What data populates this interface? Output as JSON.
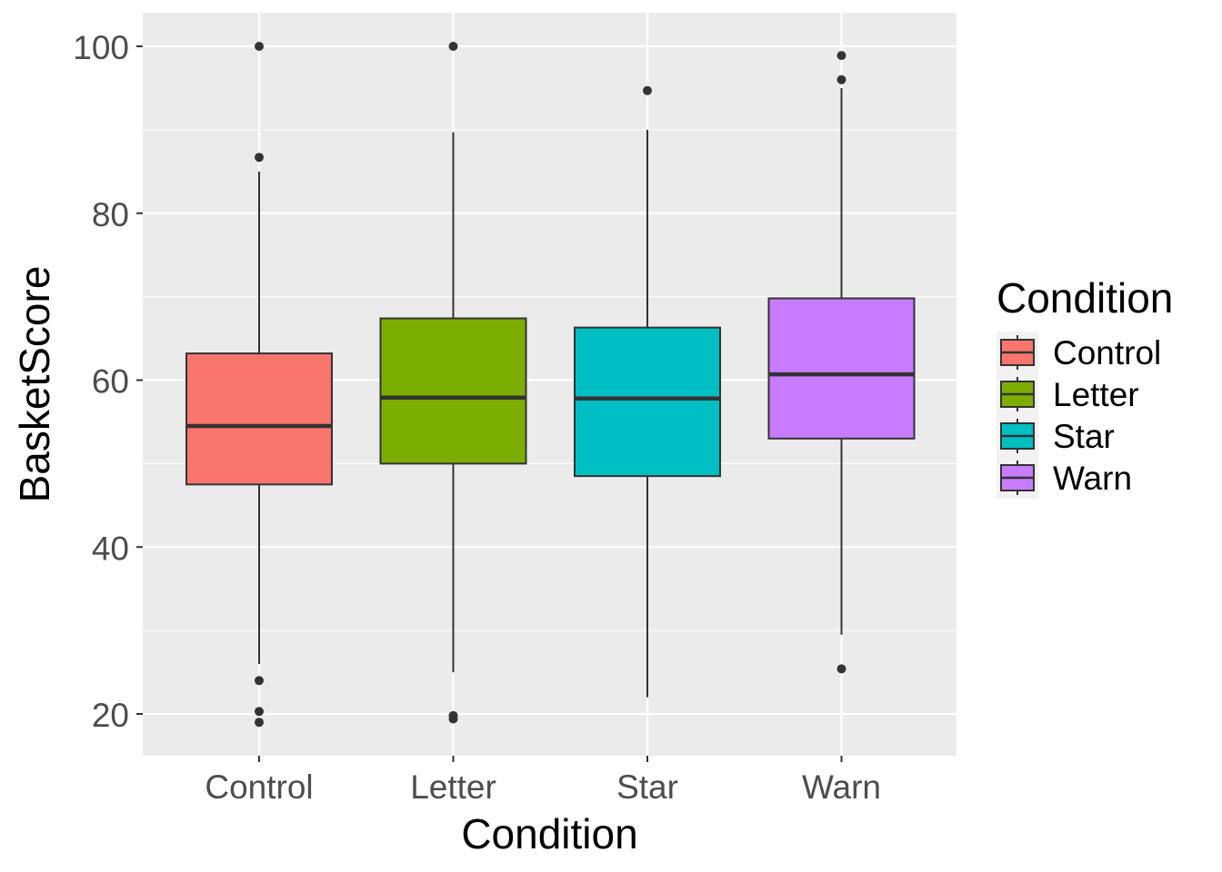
{
  "chart_data": {
    "type": "box",
    "xlabel": "Condition",
    "ylabel": "BasketScore",
    "ylim": [
      15,
      105
    ],
    "yticks": [
      20,
      40,
      60,
      80,
      100
    ],
    "categories": [
      "Control",
      "Letter",
      "Star",
      "Warn"
    ],
    "series": [
      {
        "name": "Control",
        "q1": 47.5,
        "median": 54.5,
        "q3": 63.2,
        "whisker_low": 26.0,
        "whisker_high": 85.0,
        "outliers": [
          100,
          86.7,
          24.0,
          20.3,
          19.0
        ],
        "color": "#F8766D"
      },
      {
        "name": "Letter",
        "q1": 50.0,
        "median": 57.9,
        "q3": 67.4,
        "whisker_low": 25.0,
        "whisker_high": 89.7,
        "outliers": [
          100,
          19.8,
          19.4
        ],
        "color": "#7CAE00"
      },
      {
        "name": "Star",
        "q1": 48.5,
        "median": 57.8,
        "q3": 66.3,
        "whisker_low": 22.0,
        "whisker_high": 90.0,
        "outliers": [
          94.7
        ],
        "color": "#00BFC4"
      },
      {
        "name": "Warn",
        "q1": 53.0,
        "median": 60.7,
        "q3": 69.8,
        "whisker_low": 29.5,
        "whisker_high": 95.0,
        "outliers": [
          98.9,
          96.0,
          25.4
        ],
        "color": "#C77CFF"
      }
    ],
    "legend": {
      "title": "Condition",
      "position": "right"
    },
    "grid": true,
    "panel_background": "#EBEBEB",
    "grid_color": "#FFFFFF"
  }
}
